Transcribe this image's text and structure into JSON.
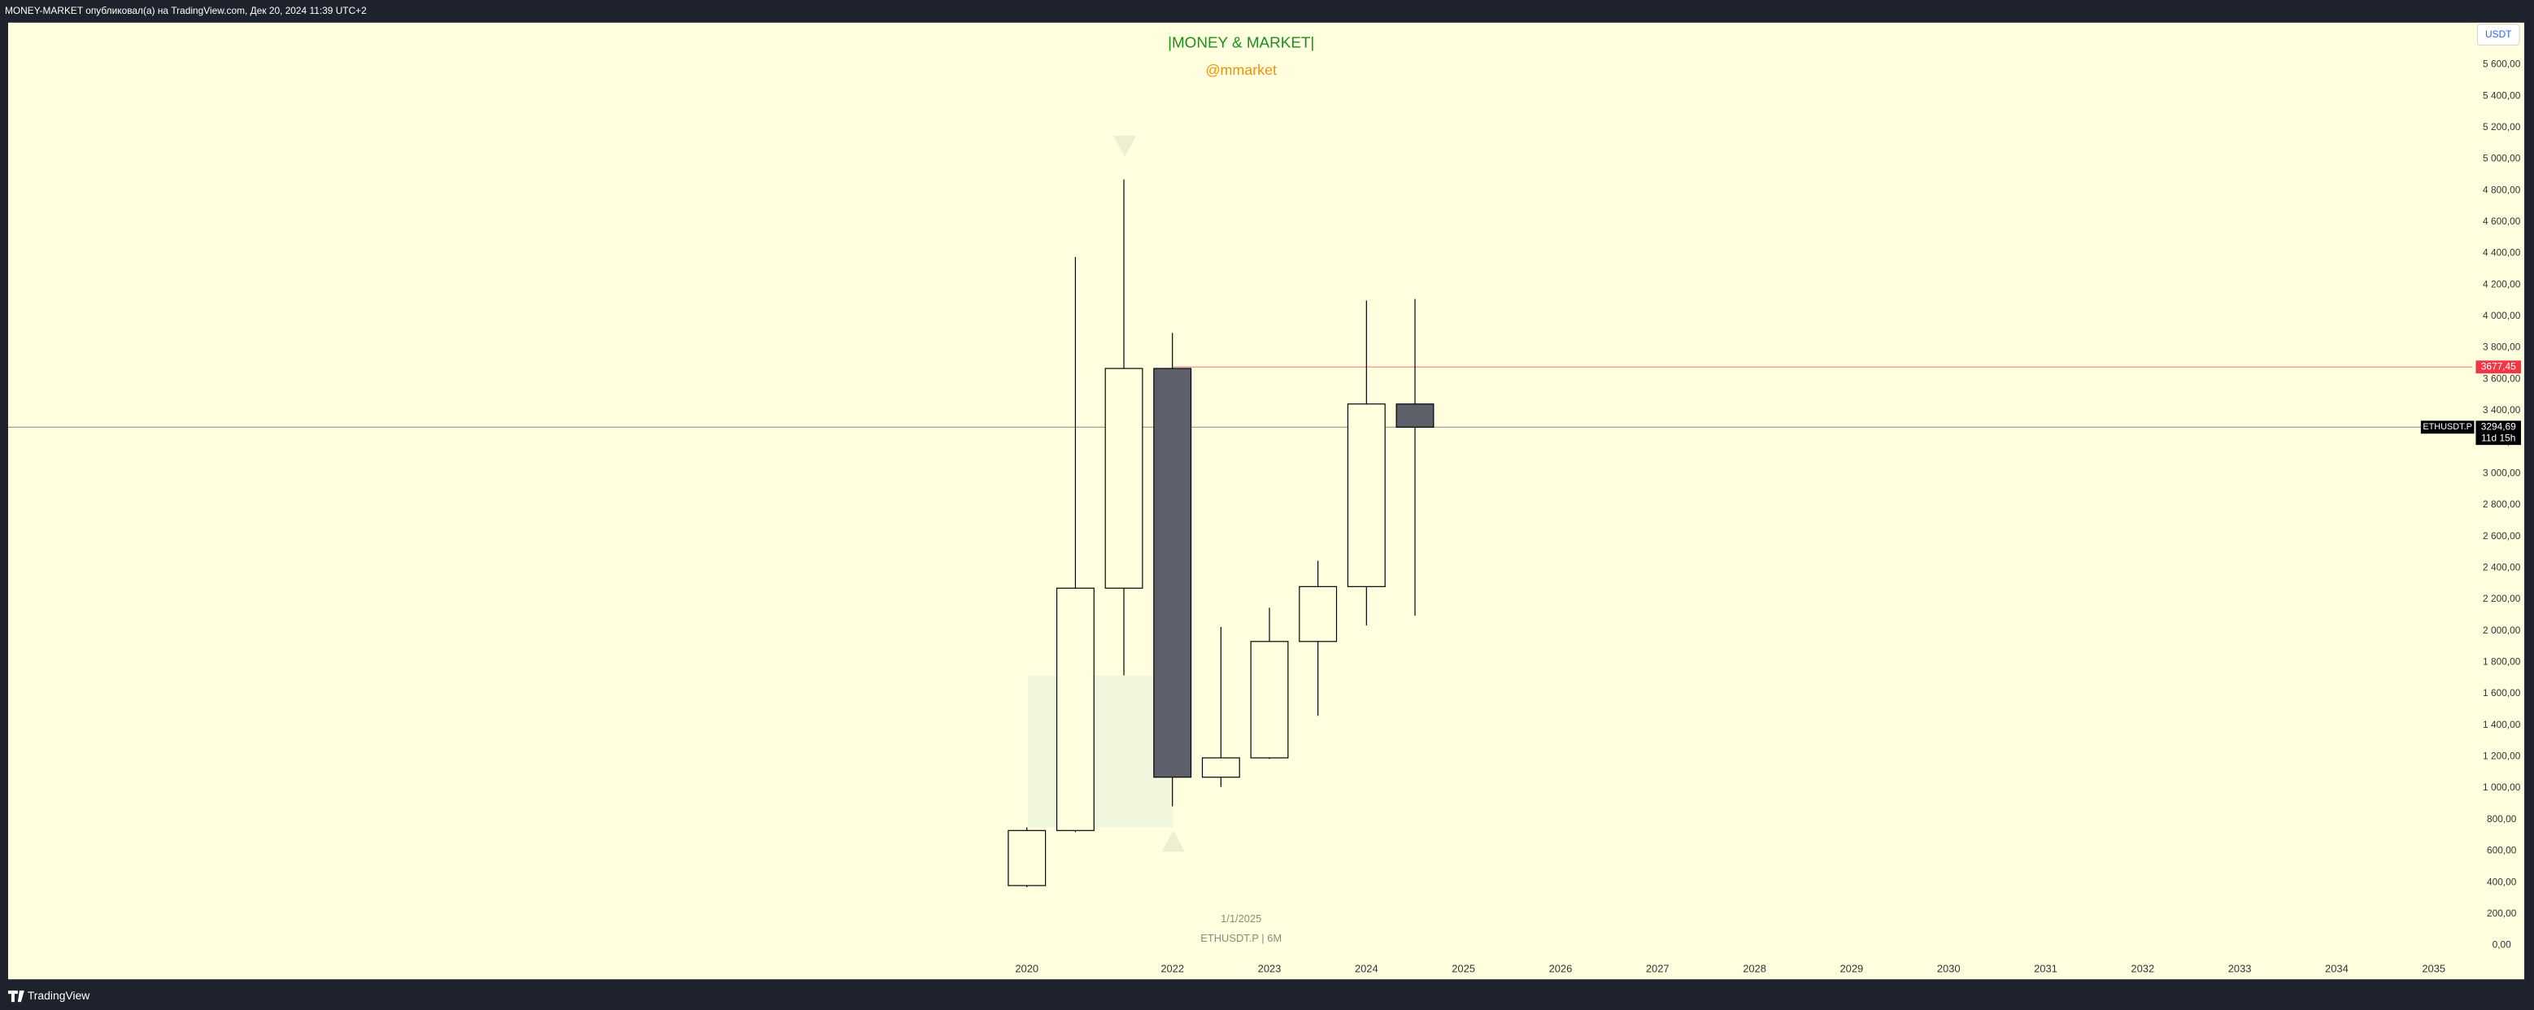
{
  "header": {
    "text": "MONEY-MARKET опубликовал(а) на TradingView.com, Дек 20, 2024 11:39 UTC+2"
  },
  "footer": {
    "brand": "TradingView"
  },
  "chart_data": {
    "type": "candlestick",
    "title": "|MONEY & MARKET|",
    "subtitle": "@mmarket",
    "currency": "USDT",
    "watermark": {
      "date": "1/1/2025",
      "symbol": "ETHUSDT.P | 6M"
    },
    "x": [
      2020.5,
      2021,
      2021.5,
      2022,
      2022.5,
      2023,
      2023.5,
      2024,
      2024.5
    ],
    "open": [
      380,
      730,
      2271,
      3668,
      1069,
      1192,
      1932,
      2281,
      3442
    ],
    "high": [
      750,
      4377,
      4870,
      3894,
      2024,
      2147,
      2445,
      4100,
      4110
    ],
    "low": [
      370,
      720,
      1716,
      884,
      1007,
      1185,
      1459,
      2034,
      2096
    ],
    "close": [
      730,
      2271,
      3668,
      1069,
      1192,
      1932,
      2281,
      3442,
      3294.69
    ],
    "up_color": "#ffffe0",
    "down_color": "#5d606b",
    "border_color": "#000000",
    "xlim": [
      2010,
      2035.4
    ],
    "xticks": [
      {
        "value": 2020.5,
        "label": "2020"
      },
      2022,
      2023,
      2024,
      2025,
      2026,
      2027,
      2028,
      2029,
      2030,
      2031,
      2032,
      2033,
      2034,
      2035
    ],
    "ylim": [
      -216,
      5867
    ],
    "yticks": [
      {
        "value": 0,
        "label": "0,00"
      },
      {
        "value": 200,
        "label": "200,00"
      },
      {
        "value": 400,
        "label": "400,00"
      },
      {
        "value": 600,
        "label": "600,00"
      },
      {
        "value": 800,
        "label": "800,00"
      },
      {
        "value": 1000,
        "label": "1 000,00"
      },
      {
        "value": 1200,
        "label": "1 200,00"
      },
      {
        "value": 1400,
        "label": "1 400,00"
      },
      {
        "value": 1600,
        "label": "1 600,00"
      },
      {
        "value": 1800,
        "label": "1 800,00"
      },
      {
        "value": 2000,
        "label": "2 000,00"
      },
      {
        "value": 2200,
        "label": "2 200,00"
      },
      {
        "value": 2400,
        "label": "2 400,00"
      },
      {
        "value": 2600,
        "label": "2 600,00"
      },
      {
        "value": 2800,
        "label": "2 800,00"
      },
      {
        "value": 3000,
        "label": "3 000,00"
      },
      {
        "value": 3200,
        "label": "3 200,00"
      },
      {
        "value": 3400,
        "label": "3 400,00"
      },
      {
        "value": 3600,
        "label": "3 600,00"
      },
      {
        "value": 3800,
        "label": "3 800,00"
      },
      {
        "value": 4000,
        "label": "4 000,00"
      },
      {
        "value": 4200,
        "label": "4 200,00"
      },
      {
        "value": 4400,
        "label": "4 400,00"
      },
      {
        "value": 4600,
        "label": "4 600,00"
      },
      {
        "value": 4800,
        "label": "4 800,00"
      },
      {
        "value": 5000,
        "label": "5 000,00"
      },
      {
        "value": 5200,
        "label": "5 200,00"
      },
      {
        "value": 5400,
        "label": "5 400,00"
      },
      {
        "value": 5600,
        "label": "5 600,00"
      }
    ],
    "grid": false,
    "price_line": {
      "value": 3677.45,
      "label": "3677,45",
      "color": "#f23645"
    },
    "last_price": {
      "value": 3294.69,
      "label": "3294,69",
      "symbol": "ETHUSDT.P",
      "countdown": "11d 15h",
      "color": "#000000"
    }
  }
}
